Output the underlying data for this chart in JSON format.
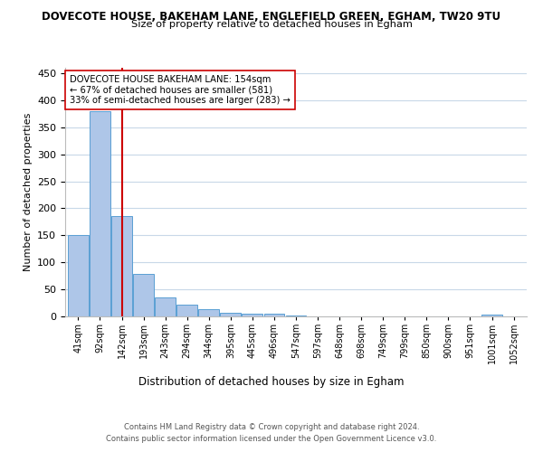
{
  "title_line1": "DOVECOTE HOUSE, BAKEHAM LANE, ENGLEFIELD GREEN, EGHAM, TW20 9TU",
  "title_line2": "Size of property relative to detached houses in Egham",
  "xlabel": "Distribution of detached houses by size in Egham",
  "ylabel": "Number of detached properties",
  "categories": [
    "41sqm",
    "92sqm",
    "142sqm",
    "193sqm",
    "243sqm",
    "294sqm",
    "344sqm",
    "395sqm",
    "445sqm",
    "496sqm",
    "547sqm",
    "597sqm",
    "648sqm",
    "698sqm",
    "749sqm",
    "799sqm",
    "850sqm",
    "900sqm",
    "951sqm",
    "1001sqm",
    "1052sqm"
  ],
  "values": [
    150,
    380,
    185,
    78,
    35,
    22,
    13,
    7,
    5,
    5,
    1,
    0,
    0,
    0,
    0,
    0,
    0,
    0,
    0,
    4,
    0
  ],
  "bar_color": "#aec6e8",
  "bar_edge_color": "#5a9fd4",
  "vline_x": 2,
  "vline_color": "#cc0000",
  "annotation_text": "DOVECOTE HOUSE BAKEHAM LANE: 154sqm\n← 67% of detached houses are smaller (581)\n33% of semi-detached houses are larger (283) →",
  "annotation_box_color": "#ffffff",
  "annotation_box_edge": "#cc0000",
  "ylim": [
    0,
    460
  ],
  "yticks": [
    0,
    50,
    100,
    150,
    200,
    250,
    300,
    350,
    400,
    450
  ],
  "footer_line1": "Contains HM Land Registry data © Crown copyright and database right 2024.",
  "footer_line2": "Contains public sector information licensed under the Open Government Licence v3.0.",
  "bg_color": "#ffffff",
  "grid_color": "#c8d8e8"
}
